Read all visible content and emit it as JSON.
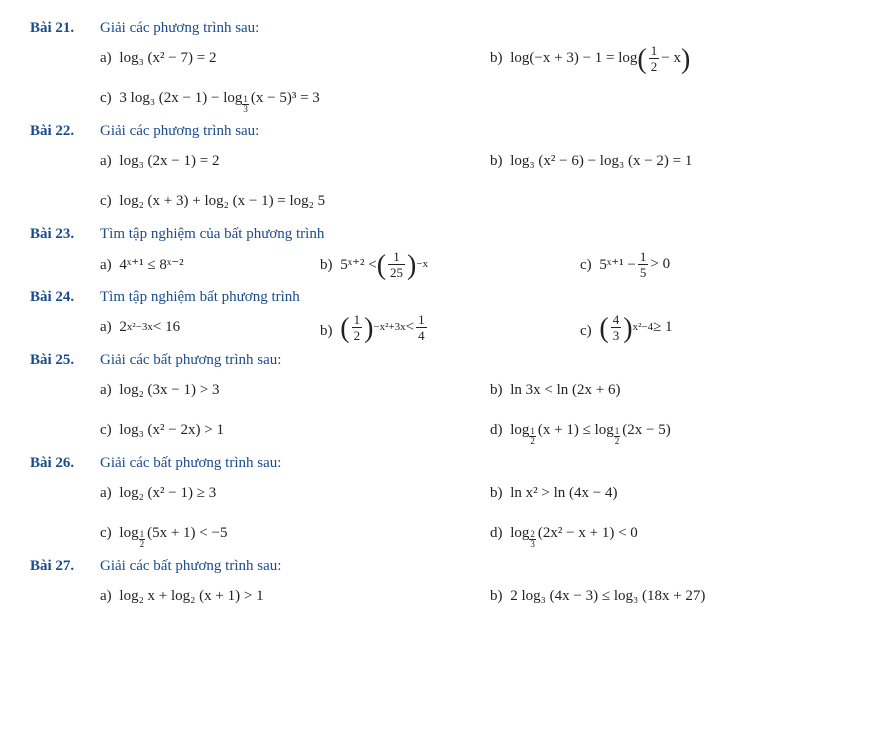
{
  "ex21": {
    "num": "Bài 21.",
    "title": "Giải các phương trình sau:",
    "a_label": "a)",
    "a": "log₃ (x² − 7) = 2",
    "b_label": "b)",
    "b_pre": "log(−x + 3) − 1 = log",
    "b_frac_n": "1",
    "b_frac_d": "2",
    "b_post": " − x",
    "c_label": "c)",
    "c_pre": "3 log₃ (2x − 1) − log",
    "c_sub_n": "1",
    "c_sub_d": "3",
    "c_post": " (x − 5)³ = 3"
  },
  "ex22": {
    "num": "Bài 22.",
    "title": "Giải các phương trình sau:",
    "a_label": "a)",
    "a": "log₃ (2x − 1) = 2",
    "b_label": "b)",
    "b": "log₃ (x² − 6) − log₃ (x − 2) = 1",
    "c_label": "c)",
    "c": "log₂ (x + 3) + log₂ (x − 1) = log₂ 5"
  },
  "ex23": {
    "num": "Bài 23.",
    "title": "Tìm tập nghiệm của bất phương trình",
    "a_label": "a)",
    "a": "4ˣ⁺¹ ≤ 8ˣ⁻²",
    "b_label": "b)",
    "b_pre": "5ˣ⁺² < ",
    "b_frac_n": "1",
    "b_frac_d": "25",
    "b_exp": "−x",
    "c_label": "c)",
    "c_pre": "5ˣ⁺¹ − ",
    "c_frac_n": "1",
    "c_frac_d": "5",
    "c_post": " > 0"
  },
  "ex24": {
    "num": "Bài 24.",
    "title": "Tìm tập nghiệm bất phương trình",
    "a_label": "a)",
    "a": "2",
    "a_exp": "x²−3x",
    "a_post": " < 16",
    "b_label": "b)",
    "b_frac_n": "1",
    "b_frac_d": "2",
    "b_exp": "−x²+3x",
    "b_mid": " < ",
    "b_frac2_n": "1",
    "b_frac2_d": "4",
    "c_label": "c)",
    "c_frac_n": "4",
    "c_frac_d": "3",
    "c_exp": "x²−4",
    "c_post": " ≥ 1"
  },
  "ex25": {
    "num": "Bài 25.",
    "title": "Giải các bất phương trình sau:",
    "a_label": "a)",
    "a": "log₂ (3x − 1) > 3",
    "b_label": "b)",
    "b": "ln 3x < ln (2x + 6)",
    "c_label": "c)",
    "c": "log₃ (x² − 2x) > 1",
    "d_label": "d)",
    "d_pre": "log",
    "d_sub_n": "1",
    "d_sub_d": "2",
    "d_mid": " (x + 1) ≤ log",
    "d_post": " (2x − 5)"
  },
  "ex26": {
    "num": "Bài 26.",
    "title": "Giải các bất phương trình sau:",
    "a_label": "a)",
    "a": "log₂ (x² − 1) ≥ 3",
    "b_label": "b)",
    "b": "ln x² > ln (4x − 4)",
    "c_label": "c)",
    "c_pre": "log",
    "c_sub_n": "1",
    "c_sub_d": "2",
    "c_post": " (5x + 1) < −5",
    "d_label": "d)",
    "d_pre": "log",
    "d_sub_n": "2",
    "d_sub_d": "3",
    "d_post": " (2x² − x + 1) < 0"
  },
  "ex27": {
    "num": "Bài 27.",
    "title": "Giải các bất phương trình sau:",
    "a_label": "a)",
    "a": "log₂ x + log₂ (x + 1) > 1",
    "b_label": "b)",
    "b": "2 log₃ (4x − 3) ≤ log₃ (18x + 27)"
  }
}
